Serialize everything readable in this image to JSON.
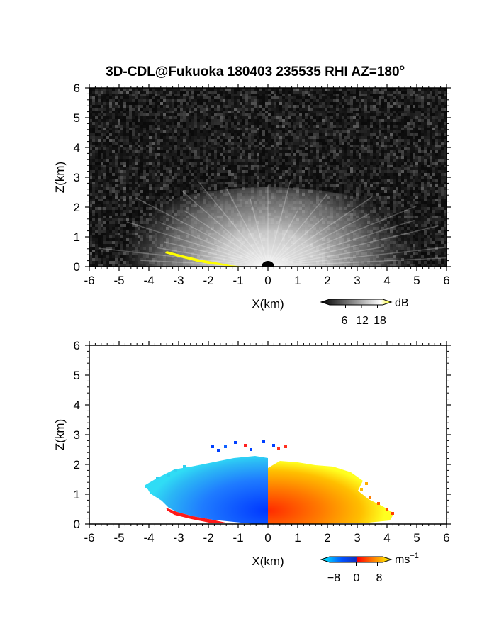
{
  "figure": {
    "title": "3D-CDL@Fukuoka 180403 235535 RHI AZ=180",
    "title_superscript": "o"
  },
  "chart_data": [
    {
      "type": "heatmap",
      "panel": "intensity",
      "xlabel": "X(km)",
      "ylabel": "Z(km)",
      "xlim": [
        -6,
        6
      ],
      "ylim": [
        0,
        6
      ],
      "x_ticks": [
        "-6",
        "-5",
        "-4",
        "-3",
        "-2",
        "-1",
        "0",
        "1",
        "2",
        "3",
        "4",
        "5",
        "6"
      ],
      "y_ticks": [
        "0",
        "1",
        "2",
        "3",
        "4",
        "5",
        "6"
      ],
      "colorbar": {
        "unit": "dB",
        "ticks": [
          "6",
          "12",
          "18"
        ],
        "tick_values": [
          6,
          12,
          18
        ],
        "range": [
          0,
          20
        ],
        "colors": [
          "#000000",
          "#ffffff",
          "#ffff00"
        ]
      },
      "background_color": "#111111",
      "highlight_color": "#ffff00"
    },
    {
      "type": "heatmap",
      "panel": "doppler-velocity",
      "xlabel": "X(km)",
      "ylabel": "Z(km)",
      "xlim": [
        -6,
        6
      ],
      "ylim": [
        0,
        6
      ],
      "x_ticks": [
        "-6",
        "-5",
        "-4",
        "-3",
        "-2",
        "-1",
        "0",
        "1",
        "2",
        "3",
        "4",
        "5",
        "6"
      ],
      "y_ticks": [
        "0",
        "1",
        "2",
        "3",
        "4",
        "5",
        "6"
      ],
      "colorbar": {
        "unit": "ms",
        "unit_superscript": "−1",
        "ticks": [
          "−8",
          "0",
          "8"
        ],
        "tick_values": [
          -8,
          0,
          8
        ],
        "range": [
          -10,
          10
        ],
        "colors": [
          "#00ffff",
          "#0050ff",
          "#ff0000",
          "#ff8000",
          "#ffff00"
        ]
      }
    }
  ]
}
